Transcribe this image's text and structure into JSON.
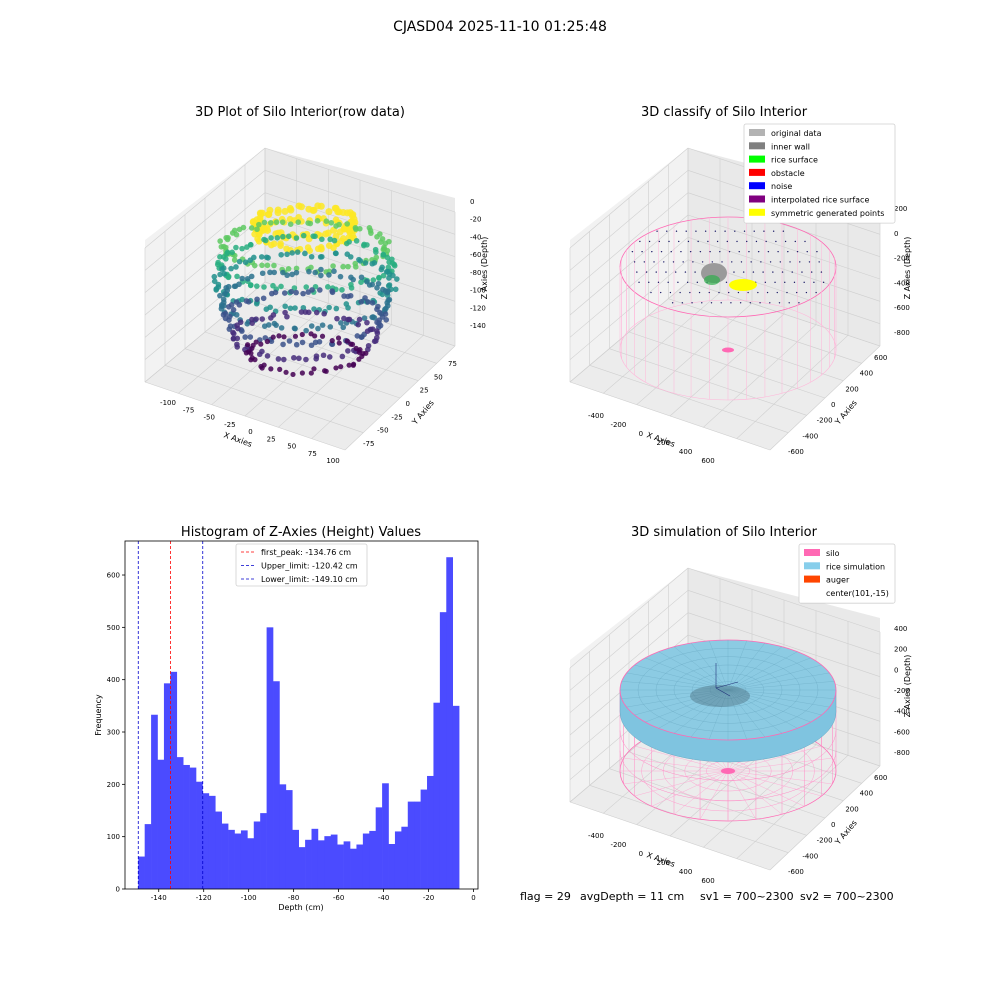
{
  "figure": {
    "suptitle": "CJASD04 2025-11-10 01:25:48",
    "status": {
      "flag": "flag = 29",
      "avg_depth": "avgDepth = 11 cm",
      "sv1": "sv1 = 700~2300",
      "sv2": "sv2 = 700~2300"
    }
  },
  "chart_data": [
    {
      "type": "scatter",
      "projection": "3d",
      "title": "3D Plot of Silo Interior(row data)",
      "xlabel": "X Axies",
      "ylabel": "Y Axies",
      "zlabel": "Z Axies (Depth)",
      "x_ticks": [
        "-100",
        "-75",
        "-50",
        "-25",
        "0",
        "25",
        "50",
        "75",
        "100"
      ],
      "y_ticks": [
        "-75",
        "-50",
        "-25",
        "0",
        "25",
        "50",
        "75"
      ],
      "z_ticks": [
        "0",
        "-20",
        "-40",
        "-60",
        "-80",
        "-100",
        "-120",
        "-140"
      ],
      "xlim": [
        -110,
        100
      ],
      "ylim": [
        -85,
        85
      ],
      "zlim": [
        -150,
        0
      ],
      "colormap": "viridis"
    },
    {
      "type": "scatter",
      "projection": "3d",
      "title": "3D classify of Silo Interior",
      "xlabel": "X Axies",
      "ylabel": "Y Axies",
      "zlabel": "Z Axies (Depth)",
      "x_ticks": [
        "-400",
        "-200",
        "0",
        "200",
        "400",
        "600"
      ],
      "y_ticks": [
        "-600",
        "-400",
        "-200",
        "0",
        "200",
        "400",
        "600"
      ],
      "z_ticks": [
        "200",
        "0",
        "-200",
        "-400",
        "-600",
        "-800"
      ],
      "legend_position": "top-right",
      "legend": [
        {
          "label": "original data",
          "color": "#b3b3b3"
        },
        {
          "label": "inner wall",
          "color": "#808080"
        },
        {
          "label": "rice surface",
          "color": "#00ff00"
        },
        {
          "label": "obstacle",
          "color": "#ff0000"
        },
        {
          "label": "noise",
          "color": "#0000ff"
        },
        {
          "label": "interpolated rice surface",
          "color": "#800080"
        },
        {
          "label": "symmetric generated points",
          "color": "#ffff00"
        }
      ]
    },
    {
      "type": "bar",
      "title": "Histogram of Z-Axies (Height) Values",
      "xlabel": "Depth (cm)",
      "ylabel": "Frequency",
      "xlim": [
        -155,
        2
      ],
      "ylim": [
        0,
        665
      ],
      "x_ticks": [
        -140,
        -120,
        -100,
        -80,
        -60,
        -40,
        -20,
        0
      ],
      "y_ticks": [
        0,
        100,
        200,
        300,
        400,
        500,
        600
      ],
      "bar_color": "#4b4bff",
      "bin_start": -149.1,
      "bin_end": -6.4,
      "values": [
        62,
        124,
        333,
        247,
        393,
        415,
        252,
        237,
        232,
        205,
        183,
        178,
        148,
        125,
        113,
        106,
        112,
        97,
        129,
        145,
        500,
        397,
        200,
        189,
        113,
        80,
        94,
        115,
        93,
        101,
        104,
        85,
        91,
        77,
        85,
        106,
        111,
        156,
        202,
        86,
        110,
        119,
        167,
        167,
        190,
        216,
        356,
        529,
        634,
        350
      ],
      "lines": [
        {
          "label": "first_peak: -134.76 cm",
          "x": -134.76,
          "color": "#ff0000"
        },
        {
          "label": "Upper_limit: -120.42 cm",
          "x": -120.42,
          "color": "#0000cc"
        },
        {
          "label": "Lower_limit: -149.10 cm",
          "x": -149.1,
          "color": "#0000cc"
        }
      ],
      "legend_position": "upper-center"
    },
    {
      "type": "scatter",
      "projection": "3d",
      "title": "3D simulation of Silo Interior",
      "xlabel": "X Axies",
      "ylabel": "Y Axies",
      "zlabel": "Z Axies (Depth)",
      "x_ticks": [
        "-400",
        "-200",
        "0",
        "200",
        "400",
        "600"
      ],
      "y_ticks": [
        "-600",
        "-400",
        "-200",
        "0",
        "200",
        "400",
        "600"
      ],
      "z_ticks": [
        "400",
        "200",
        "0",
        "-200",
        "-400",
        "-600",
        "-800"
      ],
      "legend_position": "top-right",
      "legend": [
        {
          "label": "silo",
          "color": "#ff69b4"
        },
        {
          "label": "rice simulation",
          "color": "#87ceeb"
        },
        {
          "label": "auger",
          "color": "#ff4500"
        },
        {
          "label": "center(101,-15)",
          "color": ""
        }
      ]
    }
  ]
}
